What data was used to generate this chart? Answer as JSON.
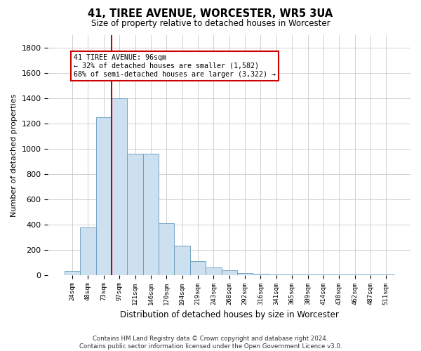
{
  "title": "41, TIREE AVENUE, WORCESTER, WR5 3UA",
  "subtitle": "Size of property relative to detached houses in Worcester",
  "xlabel": "Distribution of detached houses by size in Worcester",
  "ylabel": "Number of detached properties",
  "footer_line1": "Contains HM Land Registry data © Crown copyright and database right 2024.",
  "footer_line2": "Contains public sector information licensed under the Open Government Licence v3.0.",
  "annotation_title": "41 TIREE AVENUE: 96sqm",
  "annotation_line1": "← 32% of detached houses are smaller (1,582)",
  "annotation_line2": "68% of semi-detached houses are larger (3,322) →",
  "bar_color": "#cce0f0",
  "bar_edge_color": "#6699bb",
  "highlight_line_color": "#cc0000",
  "categories": [
    "24sqm",
    "48sqm",
    "73sqm",
    "97sqm",
    "121sqm",
    "146sqm",
    "170sqm",
    "194sqm",
    "219sqm",
    "243sqm",
    "268sqm",
    "292sqm",
    "316sqm",
    "341sqm",
    "365sqm",
    "389sqm",
    "414sqm",
    "438sqm",
    "462sqm",
    "487sqm",
    "511sqm"
  ],
  "values": [
    30,
    375,
    1250,
    1400,
    960,
    960,
    410,
    230,
    110,
    60,
    35,
    15,
    8,
    5,
    5,
    3,
    3,
    3,
    3,
    3,
    3
  ],
  "ylim": [
    0,
    1900
  ],
  "yticks": [
    0,
    200,
    400,
    600,
    800,
    1000,
    1200,
    1400,
    1600,
    1800
  ],
  "grid_color": "#d0d0d0",
  "background_color": "#ffffff",
  "line_x_index": 2.5
}
